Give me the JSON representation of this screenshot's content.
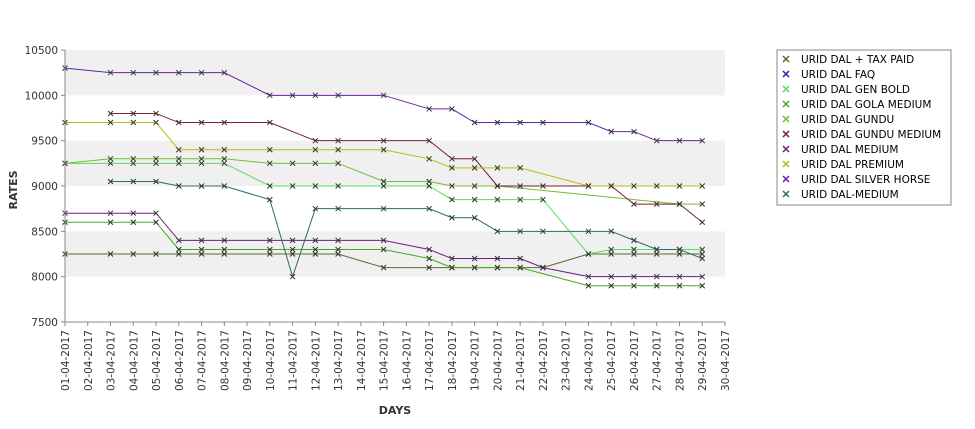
{
  "chart_data": {
    "type": "line",
    "title": "",
    "xlabel": "DAYS",
    "ylabel": "RATES",
    "ylim": [
      7500,
      10500
    ],
    "yticks": [
      7500,
      8000,
      8500,
      9000,
      9500,
      10000,
      10500
    ],
    "grid": "alternating horizontal bands",
    "legend_position": "right",
    "categories": [
      "01-04-2017",
      "02-04-2017",
      "03-04-2017",
      "04-04-2017",
      "05-04-2017",
      "06-04-2017",
      "07-04-2017",
      "08-04-2017",
      "09-04-2017",
      "10-04-2017",
      "11-04-2017",
      "12-04-2017",
      "13-04-2017",
      "14-04-2017",
      "15-04-2017",
      "16-04-2017",
      "17-04-2017",
      "18-04-2017",
      "19-04-2017",
      "20-04-2017",
      "21-04-2017",
      "22-04-2017",
      "23-04-2017",
      "24-04-2017",
      "25-04-2017",
      "26-04-2017",
      "27-04-2017",
      "28-04-2017",
      "29-04-2017",
      "30-04-2017"
    ],
    "series": [
      {
        "name": "URID DAL + TAX PAID",
        "color": "#556b2f",
        "values": [
          8250,
          null,
          8250,
          8250,
          8250,
          8250,
          8250,
          8250,
          null,
          8250,
          8250,
          8250,
          8250,
          null,
          8100,
          null,
          8100,
          8100,
          8100,
          8100,
          8100,
          8100,
          null,
          8250,
          8250,
          8250,
          8250,
          8250,
          8250,
          null
        ]
      },
      {
        "name": "URID DAL FAQ",
        "color": "#2222bb",
        "values": [
          null,
          null,
          null,
          null,
          null,
          null,
          null,
          null,
          null,
          null,
          null,
          null,
          null,
          null,
          null,
          null,
          null,
          null,
          null,
          null,
          null,
          null,
          null,
          null,
          null,
          null,
          null,
          null,
          null,
          null
        ]
      },
      {
        "name": "URID DAL GEN BOLD",
        "color": "#55dd55",
        "values": [
          9250,
          null,
          9250,
          9250,
          9250,
          9250,
          9250,
          9250,
          null,
          9000,
          9000,
          9000,
          9000,
          null,
          9000,
          null,
          9000,
          8850,
          8850,
          8850,
          8850,
          8850,
          null,
          8250,
          8300,
          8300,
          8300,
          8300,
          8300,
          null
        ]
      },
      {
        "name": "URID DAL GOLA MEDIUM",
        "color": "#44aa22",
        "values": [
          8600,
          null,
          8600,
          8600,
          8600,
          8300,
          8300,
          8300,
          null,
          8300,
          8300,
          8300,
          8300,
          null,
          8300,
          null,
          8200,
          8100,
          8100,
          8100,
          8100,
          null,
          null,
          7900,
          7900,
          7900,
          7900,
          7900,
          7900,
          null
        ]
      },
      {
        "name": "URID DAL GUNDU",
        "color": "#77bb33",
        "values": [
          9250,
          null,
          9300,
          9300,
          9300,
          9300,
          9300,
          9300,
          null,
          9250,
          9250,
          9250,
          9250,
          null,
          9050,
          null,
          9050,
          9000,
          9000,
          9000,
          null,
          null,
          null,
          null,
          null,
          null,
          null,
          8800,
          8800,
          null
        ]
      },
      {
        "name": "URID DAL GUNDU MEDIUM",
        "color": "#7a1f2b",
        "values": [
          null,
          null,
          9800,
          9800,
          9800,
          9700,
          9700,
          9700,
          null,
          9700,
          null,
          9500,
          9500,
          null,
          9500,
          null,
          9500,
          9300,
          9300,
          9000,
          9000,
          9000,
          null,
          9000,
          9000,
          8800,
          8800,
          8800,
          8600,
          null
        ]
      },
      {
        "name": "URID DAL MEDIUM",
        "color": "#6b1f7a",
        "values": [
          8700,
          null,
          8700,
          8700,
          8700,
          8400,
          8400,
          8400,
          null,
          8400,
          8400,
          8400,
          8400,
          null,
          8400,
          null,
          8300,
          8200,
          8200,
          8200,
          8200,
          8100,
          null,
          8000,
          8000,
          8000,
          8000,
          8000,
          8000,
          null
        ]
      },
      {
        "name": "URID DAL PREMIUM",
        "color": "#bbbb11",
        "values": [
          9700,
          null,
          9700,
          9700,
          9700,
          9400,
          9400,
          9400,
          null,
          9400,
          null,
          9400,
          9400,
          null,
          9400,
          null,
          9300,
          9200,
          9200,
          9200,
          9200,
          null,
          null,
          9000,
          9000,
          9000,
          9000,
          9000,
          9000,
          null
        ]
      },
      {
        "name": "URID DAL SILVER HORSE",
        "color": "#6622aa",
        "values": [
          10300,
          null,
          10250,
          10250,
          10250,
          10250,
          10250,
          10250,
          null,
          10000,
          10000,
          10000,
          10000,
          null,
          10000,
          null,
          9850,
          9850,
          9700,
          9700,
          9700,
          9700,
          null,
          9700,
          9600,
          9600,
          9500,
          9500,
          9500,
          null
        ]
      },
      {
        "name": "URID DAL-MEDIUM",
        "color": "#2b6b66",
        "values": [
          null,
          null,
          9050,
          9050,
          9050,
          9000,
          9000,
          9000,
          null,
          8850,
          8000,
          8750,
          8750,
          null,
          8750,
          null,
          8750,
          8650,
          8650,
          8500,
          8500,
          8500,
          null,
          8500,
          8500,
          8400,
          8300,
          8300,
          8200,
          null
        ]
      }
    ]
  }
}
